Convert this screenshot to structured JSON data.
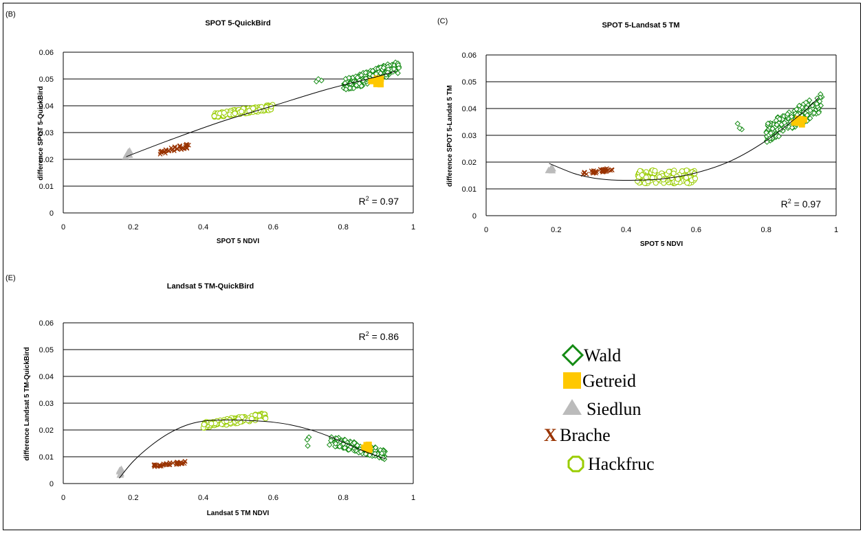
{
  "colors": {
    "Wald": "#138a13",
    "Getreid": "#ffc800",
    "Siedlun": "#bbbbbb",
    "Brache": "#993300",
    "Hackfruc": "#99cc00",
    "fit": "#000000",
    "grid": "#000000"
  },
  "legend": {
    "items": [
      {
        "key": "Wald",
        "label": "Wald",
        "marker": "diamond-open"
      },
      {
        "key": "Getreid",
        "label": "Getreid",
        "marker": "square-filled"
      },
      {
        "key": "Siedlun",
        "label": "Siedlun",
        "marker": "triangle-filled"
      },
      {
        "key": "Brache",
        "label": "Brache",
        "marker": "x"
      },
      {
        "key": "Hackfruc",
        "label": "Hackfruc",
        "marker": "circle-open"
      }
    ]
  },
  "chart_data": [
    {
      "type": "scatter",
      "panel_label": "(B)",
      "title": "SPOT 5-QuickBird",
      "xlabel": "SPOT 5 NDVI",
      "ylabel": "difference SPOT 5-QuickBird",
      "xlim": [
        0,
        1
      ],
      "ylim": [
        0,
        0.06
      ],
      "xticks": [
        "0",
        "0.2",
        "0.4",
        "0.6",
        "0.8",
        "1"
      ],
      "yticks": [
        "0",
        "0.01",
        "0.02",
        "0.03",
        "0.04",
        "0.05",
        "0.06"
      ],
      "grid": "horizontal",
      "r2": "0.97",
      "r2_position": "bottom-right",
      "trendline": {
        "type": "polynomial",
        "x": [
          0.18,
          0.3,
          0.45,
          0.6,
          0.75,
          0.9,
          0.95
        ],
        "y": [
          0.021,
          0.027,
          0.034,
          0.04,
          0.046,
          0.051,
          0.053
        ]
      },
      "series": [
        {
          "key": "Wald",
          "clusters": [
            {
              "x": [
                0.8,
                0.96
              ],
              "y": [
                0.045,
                0.057
              ],
              "n": 170,
              "trend": true
            },
            {
              "x": [
                0.71,
                0.74
              ],
              "y": [
                0.049,
                0.05
              ],
              "n": 3
            }
          ]
        },
        {
          "key": "Hackfruc",
          "clusters": [
            {
              "x": [
                0.43,
                0.6
              ],
              "y": [
                0.0355,
                0.0405
              ],
              "n": 130,
              "trend": true
            }
          ]
        },
        {
          "key": "Brache",
          "clusters": [
            {
              "x": [
                0.27,
                0.36
              ],
              "y": [
                0.0215,
                0.026
              ],
              "n": 35,
              "trend": true
            }
          ]
        },
        {
          "key": "Siedlun",
          "clusters": [
            {
              "x": [
                0.175,
                0.19
              ],
              "y": [
                0.021,
                0.024
              ],
              "n": 6
            }
          ]
        },
        {
          "key": "Getreid",
          "clusters": [
            {
              "x": [
                0.88,
                0.91
              ],
              "y": [
                0.048,
                0.0505
              ],
              "n": 8
            }
          ]
        }
      ]
    },
    {
      "type": "scatter",
      "panel_label": "(C)",
      "title": "SPOT 5-Landsat 5 TM",
      "xlabel": "SPOT 5 NDVI",
      "ylabel": "difference SPOT 5-Landat 5 TM",
      "xlim": [
        0,
        1
      ],
      "ylim": [
        0,
        0.06
      ],
      "xticks": [
        "0",
        "0.2",
        "0.4",
        "0.6",
        "0.8",
        "1"
      ],
      "yticks": [
        "0",
        "0.01",
        "0.02",
        "0.03",
        "0.04",
        "0.05",
        "0.06"
      ],
      "grid": "horizontal",
      "r2": "0.97",
      "r2_position": "bottom-right",
      "trendline": {
        "type": "polynomial",
        "x": [
          0.18,
          0.25,
          0.3,
          0.35,
          0.4,
          0.5,
          0.6,
          0.7,
          0.8,
          0.9,
          0.95
        ],
        "y": [
          0.0195,
          0.0158,
          0.0142,
          0.0134,
          0.0132,
          0.0137,
          0.016,
          0.0205,
          0.028,
          0.038,
          0.044
        ]
      },
      "series": [
        {
          "key": "Wald",
          "clusters": [
            {
              "x": [
                0.8,
                0.96
              ],
              "y": [
                0.027,
                0.046
              ],
              "n": 180,
              "trend": true
            },
            {
              "x": [
                0.71,
                0.74
              ],
              "y": [
                0.032,
                0.035
              ],
              "n": 3
            }
          ]
        },
        {
          "key": "Hackfruc",
          "clusters": [
            {
              "x": [
                0.43,
                0.6
              ],
              "y": [
                0.012,
                0.017
              ],
              "n": 130,
              "flat": true
            }
          ]
        },
        {
          "key": "Brache",
          "clusters": [
            {
              "x": [
                0.27,
                0.36
              ],
              "y": [
                0.015,
                0.018
              ],
              "n": 35,
              "trend": true
            }
          ]
        },
        {
          "key": "Siedlun",
          "clusters": [
            {
              "x": [
                0.175,
                0.19
              ],
              "y": [
                0.0165,
                0.0185
              ],
              "n": 6
            }
          ]
        },
        {
          "key": "Getreid",
          "clusters": [
            {
              "x": [
                0.88,
                0.91
              ],
              "y": [
                0.034,
                0.0365
              ],
              "n": 8
            }
          ]
        }
      ]
    },
    {
      "type": "scatter",
      "panel_label": "(E)",
      "title": "Landsat 5 TM-QuickBird",
      "xlabel": "Landsat 5 TM NDVI",
      "ylabel": "difference Landsat 5 TM-QuickBird",
      "xlim": [
        0,
        1
      ],
      "ylim": [
        0,
        0.06
      ],
      "xticks": [
        "0",
        "0.2",
        "0.4",
        "0.6",
        "0.8",
        "1"
      ],
      "yticks": [
        "0",
        "0.01",
        "0.02",
        "0.03",
        "0.04",
        "0.05",
        "0.06"
      ],
      "grid": "horizontal",
      "r2": "0.86",
      "r2_position": "top-right",
      "trendline": {
        "type": "polynomial",
        "x": [
          0.16,
          0.2,
          0.25,
          0.3,
          0.35,
          0.4,
          0.45,
          0.5,
          0.55,
          0.6,
          0.65,
          0.7,
          0.75,
          0.8,
          0.85,
          0.9,
          0.92
        ],
        "y": [
          0.002,
          0.0083,
          0.0141,
          0.0186,
          0.0217,
          0.0233,
          0.0237,
          0.0237,
          0.0234,
          0.0229,
          0.0219,
          0.0203,
          0.0181,
          0.0154,
          0.0126,
          0.0101,
          0.0093
        ]
      },
      "series": [
        {
          "key": "Wald",
          "clusters": [
            {
              "x": [
                0.76,
                0.92
              ],
              "y": [
                0.009,
                0.018
              ],
              "n": 150,
              "trend": true,
              "slope": "negative"
            },
            {
              "x": [
                0.68,
                0.71
              ],
              "y": [
                0.014,
                0.0175
              ],
              "n": 3
            }
          ]
        },
        {
          "key": "Hackfruc",
          "clusters": [
            {
              "x": [
                0.4,
                0.58
              ],
              "y": [
                0.0205,
                0.0265
              ],
              "n": 130,
              "trend": true
            }
          ]
        },
        {
          "key": "Brache",
          "clusters": [
            {
              "x": [
                0.25,
                0.35
              ],
              "y": [
                0.006,
                0.0085
              ],
              "n": 35,
              "trend": true
            }
          ]
        },
        {
          "key": "Siedlun",
          "clusters": [
            {
              "x": [
                0.16,
                0.175
              ],
              "y": [
                0.003,
                0.006
              ],
              "n": 6
            }
          ]
        },
        {
          "key": "Getreid",
          "clusters": [
            {
              "x": [
                0.86,
                0.885
              ],
              "y": [
                0.0125,
                0.0145
              ],
              "n": 8
            }
          ]
        }
      ]
    }
  ]
}
